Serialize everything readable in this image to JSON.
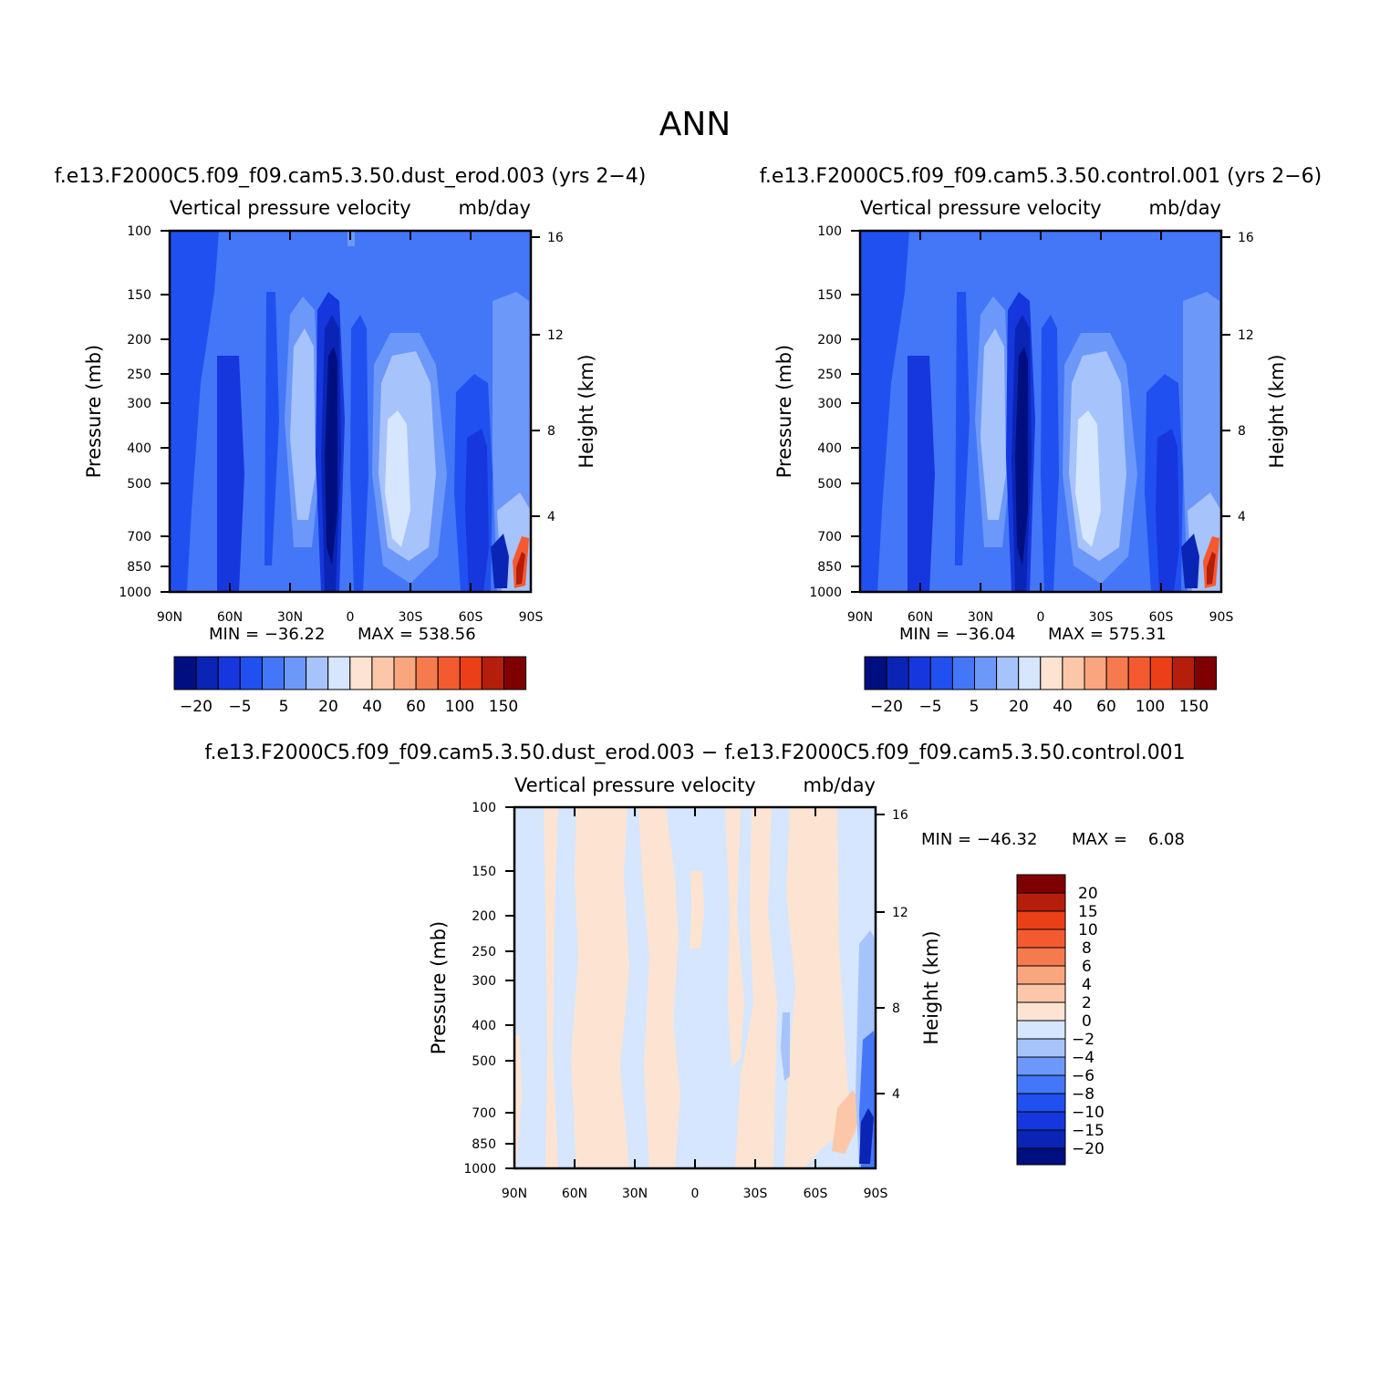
{
  "figure_title": "ANN",
  "colors": {
    "blues": [
      "#000f7f",
      "#0a25b5",
      "#1537dd",
      "#2050ef",
      "#4377f7",
      "#6c98fa",
      "#a7c3fc",
      "#d5e6fe"
    ],
    "reds": [
      "#fde4d2",
      "#fcc7a8",
      "#f9a57e",
      "#f57a4d",
      "#f45a30",
      "#ea3f17",
      "#b51e0a",
      "#7f0000"
    ]
  },
  "chart_data": [
    {
      "type": "heatmap",
      "case": "f.e13.F2000C5.f09_f09.cam5.3.50.dust_erod.003 (yrs 2−4)",
      "variable": "Vertical pressure velocity",
      "units": "mb/day",
      "ylabel": "Pressure (mb)",
      "ylabel_right": "Height (km)",
      "x_ticks": [
        "90N",
        "60N",
        "30N",
        "0",
        "30S",
        "60S",
        "90S"
      ],
      "y_ticks": [
        "100",
        "150",
        "200",
        "250",
        "300",
        "400",
        "500",
        "700",
        "850",
        "1000"
      ],
      "y_ticks_right": [
        "16",
        "12",
        "8",
        "4"
      ],
      "min_text": "MIN = −36.22",
      "max_text": "MAX = 538.56",
      "min": -36.22,
      "max": 538.56,
      "xlim": [
        90,
        -90
      ],
      "ylim": [
        1000,
        100
      ],
      "colorbar_labels": [
        "−20",
        "−5",
        "5",
        "20",
        "40",
        "60",
        "100",
        "150"
      ],
      "colorbar_orientation": "horizontal"
    },
    {
      "type": "heatmap",
      "case": "f.e13.F2000C5.f09_f09.cam5.3.50.control.001 (yrs 2−6)",
      "variable": "Vertical pressure velocity",
      "units": "mb/day",
      "ylabel": "Pressure (mb)",
      "ylabel_right": "Height (km)",
      "x_ticks": [
        "90N",
        "60N",
        "30N",
        "0",
        "30S",
        "60S",
        "90S"
      ],
      "y_ticks": [
        "100",
        "150",
        "200",
        "250",
        "300",
        "400",
        "500",
        "700",
        "850",
        "1000"
      ],
      "y_ticks_right": [
        "16",
        "12",
        "8",
        "4"
      ],
      "min_text": "MIN = −36.04",
      "max_text": "MAX = 575.31",
      "min": -36.04,
      "max": 575.31,
      "xlim": [
        90,
        -90
      ],
      "ylim": [
        1000,
        100
      ],
      "colorbar_labels": [
        "−20",
        "−5",
        "5",
        "20",
        "40",
        "60",
        "100",
        "150"
      ],
      "colorbar_orientation": "horizontal"
    },
    {
      "type": "heatmap",
      "case": "f.e13.F2000C5.f09_f09.cam5.3.50.dust_erod.003 − f.e13.F2000C5.f09_f09.cam5.3.50.control.001",
      "variable": "Vertical pressure velocity",
      "units": "mb/day",
      "ylabel": "Pressure (mb)",
      "ylabel_right": "Height (km)",
      "x_ticks": [
        "90N",
        "60N",
        "30N",
        "0",
        "30S",
        "60S",
        "90S"
      ],
      "y_ticks": [
        "100",
        "150",
        "200",
        "250",
        "300",
        "400",
        "500",
        "700",
        "850",
        "1000"
      ],
      "y_ticks_right": [
        "16",
        "12",
        "8",
        "4"
      ],
      "min_text": "MIN = −46.32",
      "max_text": "MAX =    6.08",
      "min": -46.32,
      "max": 6.08,
      "xlim": [
        90,
        -90
      ],
      "ylim": [
        1000,
        100
      ],
      "colorbar_labels": [
        "20",
        "15",
        "10",
        "8",
        "6",
        "4",
        "2",
        "0",
        "−2",
        "−4",
        "−6",
        "−8",
        "−10",
        "−15",
        "−20"
      ],
      "colorbar_orientation": "vertical"
    }
  ]
}
